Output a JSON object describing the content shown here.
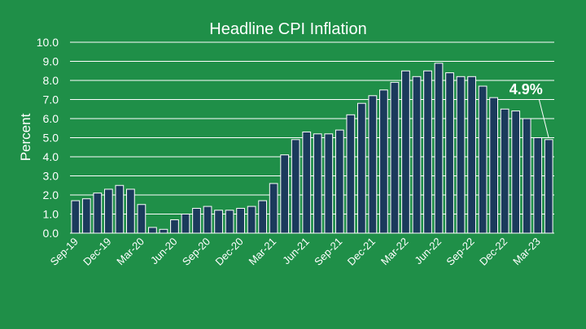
{
  "colors": {
    "background": "#1f8f48",
    "bar_fill": "#1b3a5c",
    "bar_stroke": "#ffffff",
    "grid": "#ffffff",
    "text": "#ffffff"
  },
  "chart_data": {
    "type": "bar",
    "title": "Headline CPI Inflation",
    "xlabel": "",
    "ylabel": "Percent",
    "ylim": [
      0,
      10
    ],
    "yticks": [
      "0.0",
      "1.0",
      "2.0",
      "3.0",
      "4.0",
      "5.0",
      "6.0",
      "7.0",
      "8.0",
      "9.0",
      "10.0"
    ],
    "grid": true,
    "categories": [
      "Sep-19",
      "Oct-19",
      "Nov-19",
      "Dec-19",
      "Jan-20",
      "Feb-20",
      "Mar-20",
      "Apr-20",
      "May-20",
      "Jun-20",
      "Jul-20",
      "Aug-20",
      "Sep-20",
      "Oct-20",
      "Nov-20",
      "Dec-20",
      "Jan-21",
      "Feb-21",
      "Mar-21",
      "Apr-21",
      "May-21",
      "Jun-21",
      "Jul-21",
      "Aug-21",
      "Sep-21",
      "Oct-21",
      "Nov-21",
      "Dec-21",
      "Jan-22",
      "Feb-22",
      "Mar-22",
      "Apr-22",
      "May-22",
      "Jun-22",
      "Jul-22",
      "Aug-22",
      "Sep-22",
      "Oct-22",
      "Nov-22",
      "Dec-22",
      "Jan-23",
      "Feb-23",
      "Mar-23",
      "Apr-23"
    ],
    "x_tick_labels": [
      "Sep-19",
      "Dec-19",
      "Mar-20",
      "Jun-20",
      "Sep-20",
      "Dec-20",
      "Mar-21",
      "Jun-21",
      "Sep-21",
      "Dec-21",
      "Mar-22",
      "Jun-22",
      "Sep-22",
      "Dec-22",
      "Mar-23"
    ],
    "values": [
      1.7,
      1.8,
      2.1,
      2.3,
      2.5,
      2.3,
      1.5,
      0.3,
      0.2,
      0.7,
      1.0,
      1.3,
      1.4,
      1.2,
      1.2,
      1.3,
      1.4,
      1.7,
      2.6,
      4.1,
      4.9,
      5.3,
      5.2,
      5.2,
      5.4,
      6.2,
      6.8,
      7.2,
      7.5,
      7.9,
      8.5,
      8.2,
      8.5,
      8.9,
      8.4,
      8.2,
      8.2,
      7.7,
      7.1,
      6.5,
      6.4,
      6.0,
      5.0,
      4.9
    ],
    "annotation": {
      "text": "4.9%",
      "category": "Apr-23"
    }
  }
}
